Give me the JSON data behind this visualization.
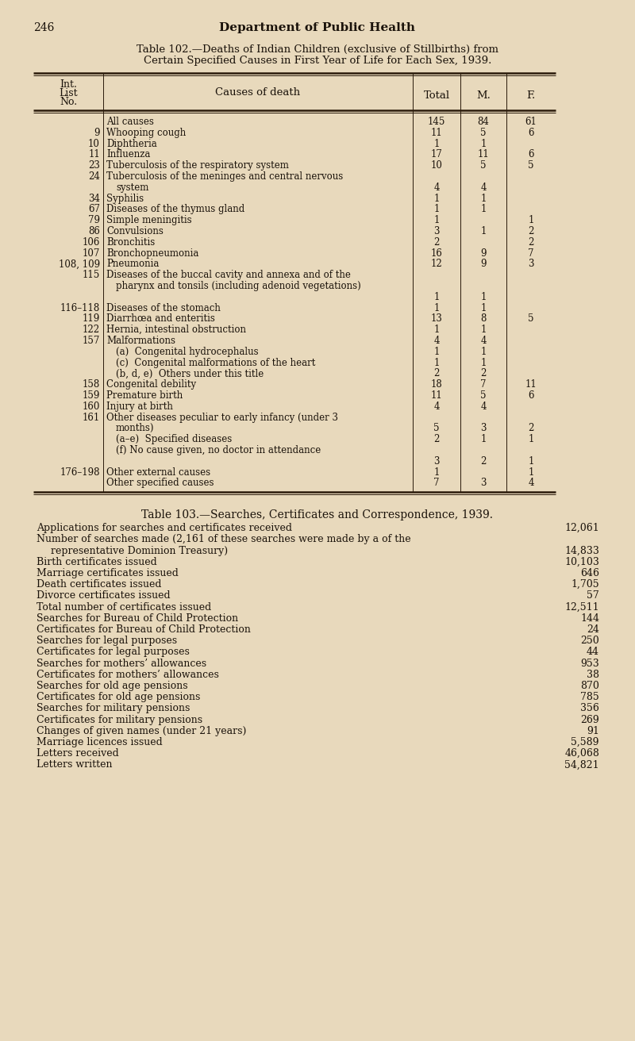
{
  "bg_color": "#e8d9bc",
  "page_num": "246",
  "page_header": "Department of Public Health",
  "table102_title_line1": "Table 102.—Deaths of Indian Children (exclusive of Stillbirths) from",
  "table102_title_line2": "Certain Specified Causes in First Year of Life for Each Sex, 1939.",
  "col_header_intlist": "Int.\nList\nNo.",
  "col_header_cause": "Causes of death",
  "col_header_total": "Total",
  "col_header_m": "M.",
  "col_header_f": "F.",
  "table102_rows": [
    {
      "int": "",
      "cause": "All causes",
      "total": "145",
      "m": "84",
      "f": "61",
      "indent": 0,
      "extralines": 0
    },
    {
      "int": "9",
      "cause": "Whooping cough",
      "total": "11",
      "m": "5",
      "f": "6",
      "indent": 0,
      "extralines": 0
    },
    {
      "int": "10",
      "cause": "Diphtheria",
      "total": "1",
      "m": "1",
      "f": "",
      "indent": 0,
      "extralines": 0
    },
    {
      "int": "11",
      "cause": "Influenza",
      "total": "17",
      "m": "11",
      "f": "6",
      "indent": 0,
      "extralines": 0
    },
    {
      "int": "23",
      "cause": "Tuberculosis of the respiratory system",
      "total": "10",
      "m": "5",
      "f": "5",
      "indent": 0,
      "extralines": 0
    },
    {
      "int": "24",
      "cause": "Tuberculosis of the meninges and central nervous system",
      "total": "4",
      "m": "4",
      "f": "",
      "indent": 0,
      "extralines": 1
    },
    {
      "int": "34",
      "cause": "Syphilis",
      "total": "1",
      "m": "1",
      "f": "",
      "indent": 0,
      "extralines": 0
    },
    {
      "int": "67",
      "cause": "Diseases of the thymus gland",
      "total": "1",
      "m": "1",
      "f": "",
      "indent": 0,
      "extralines": 0
    },
    {
      "int": "79",
      "cause": "Simple meningitis",
      "total": "1",
      "m": "",
      "f": "1",
      "indent": 0,
      "extralines": 0
    },
    {
      "int": "86",
      "cause": "Convulsions",
      "total": "3",
      "m": "1",
      "f": "2",
      "indent": 0,
      "extralines": 0
    },
    {
      "int": "106",
      "cause": "Bronchitis",
      "total": "2",
      "m": "",
      "f": "2",
      "indent": 0,
      "extralines": 0
    },
    {
      "int": "107",
      "cause": "Bronchopneumonia",
      "total": "16",
      "m": "9",
      "f": "7",
      "indent": 0,
      "extralines": 0
    },
    {
      "int": "108, 109",
      "cause": "Pneumonia",
      "total": "12",
      "m": "9",
      "f": "3",
      "indent": 0,
      "extralines": 0
    },
    {
      "int": "115",
      "cause": "Diseases of the buccal cavity and annexa and of the pharynx and tonsils (including adenoid vegetations)",
      "total": "1",
      "m": "1",
      "f": "",
      "indent": 0,
      "extralines": 2
    },
    {
      "int": "116–118",
      "cause": "Diseases of the stomach",
      "total": "1",
      "m": "1",
      "f": "",
      "indent": 0,
      "extralines": 0
    },
    {
      "int": "119",
      "cause": "Diarrhœa and enteritis",
      "total": "13",
      "m": "8",
      "f": "5",
      "indent": 0,
      "extralines": 0
    },
    {
      "int": "122",
      "cause": "Hernia, intestinal obstruction",
      "total": "1",
      "m": "1",
      "f": "",
      "indent": 0,
      "extralines": 0
    },
    {
      "int": "157",
      "cause": "Malformations",
      "total": "4",
      "m": "4",
      "f": "",
      "indent": 0,
      "extralines": 0
    },
    {
      "int": "",
      "cause": "(a)  Congenital hydrocephalus",
      "total": "1",
      "m": "1",
      "f": "",
      "indent": 1,
      "extralines": 0
    },
    {
      "int": "",
      "cause": "(c)  Congenital malformations of the heart",
      "total": "1",
      "m": "1",
      "f": "",
      "indent": 1,
      "extralines": 0
    },
    {
      "int": "",
      "cause": "(b, d, e)  Others under this title",
      "total": "2",
      "m": "2",
      "f": "",
      "indent": 1,
      "extralines": 0
    },
    {
      "int": "158",
      "cause": "Congenital debility",
      "total": "18",
      "m": "7",
      "f": "11",
      "indent": 0,
      "extralines": 0
    },
    {
      "int": "159",
      "cause": "Premature birth",
      "total": "11",
      "m": "5",
      "f": "6",
      "indent": 0,
      "extralines": 0
    },
    {
      "int": "160",
      "cause": "Injury at birth",
      "total": "4",
      "m": "4",
      "f": "",
      "indent": 0,
      "extralines": 0
    },
    {
      "int": "161",
      "cause": "Other diseases peculiar to early infancy (under 3 months)",
      "total": "5",
      "m": "3",
      "f": "2",
      "indent": 0,
      "extralines": 1
    },
    {
      "int": "",
      "cause": "(a–e)  Specified diseases",
      "total": "2",
      "m": "1",
      "f": "1",
      "indent": 1,
      "extralines": 0
    },
    {
      "int": "",
      "cause": "(f)  No cause given, no doctor in attendance",
      "total": "3",
      "m": "2",
      "f": "1",
      "indent": 1,
      "extralines": 1
    },
    {
      "int": "176–198",
      "cause": "Other external causes",
      "total": "1",
      "m": "",
      "f": "1",
      "indent": 0,
      "extralines": 0
    },
    {
      "int": "",
      "cause": "Other specified causes",
      "total": "7",
      "m": "3",
      "f": "4",
      "indent": 0,
      "extralines": 0
    }
  ],
  "table103_title": "Table 103.—Searches, Certificates and Correspondence, 1939.",
  "table103_rows": [
    {
      "label": "Applications for searches and certificates received",
      "val": "12,061",
      "extralines": 0
    },
    {
      "label": "Number of searches made (2,161 of these searches were made by a representative of the Dominion Treasury)",
      "val": "14,833",
      "extralines": 1
    },
    {
      "label": "Birth certificates issued",
      "val": "10,103",
      "extralines": 0
    },
    {
      "label": "Marriage certificates issued",
      "val": "646",
      "extralines": 0
    },
    {
      "label": "Death certificates issued",
      "val": "1,705",
      "extralines": 0
    },
    {
      "label": "Divorce certificates issued",
      "val": "57",
      "extralines": 0
    },
    {
      "label": "Total number of certificates issued",
      "val": "12,511",
      "extralines": 0
    },
    {
      "label": "Searches for Bureau of Child Protection",
      "val": "144",
      "extralines": 0
    },
    {
      "label": "Certificates for Bureau of Child Protection",
      "val": "24",
      "extralines": 0
    },
    {
      "label": "Searches for legal purposes",
      "val": "250",
      "extralines": 0
    },
    {
      "label": "Certificates for legal purposes",
      "val": "44",
      "extralines": 0
    },
    {
      "label": "Searches for mothers’ allowances",
      "val": "953",
      "extralines": 0
    },
    {
      "label": "Certificates for mothers’ allowances",
      "val": "38",
      "extralines": 0
    },
    {
      "label": "Searches for old age pensions",
      "val": "870",
      "extralines": 0
    },
    {
      "label": "Certificates for old age pensions",
      "val": "785",
      "extralines": 0
    },
    {
      "label": "Searches for military pensions",
      "val": "356",
      "extralines": 0
    },
    {
      "label": "Certificates for military pensions",
      "val": "269",
      "extralines": 0
    },
    {
      "label": "Changes of given names (under 21 years)",
      "val": "91",
      "extralines": 0
    },
    {
      "label": "Marriage licences issued",
      "val": "5,589",
      "extralines": 0
    },
    {
      "label": "Letters received",
      "val": "46,068",
      "extralines": 0
    },
    {
      "label": "Letters written",
      "val": "54,821",
      "extralines": 0
    }
  ],
  "text_color": "#1a120a",
  "line_color": "#2a1a0a"
}
